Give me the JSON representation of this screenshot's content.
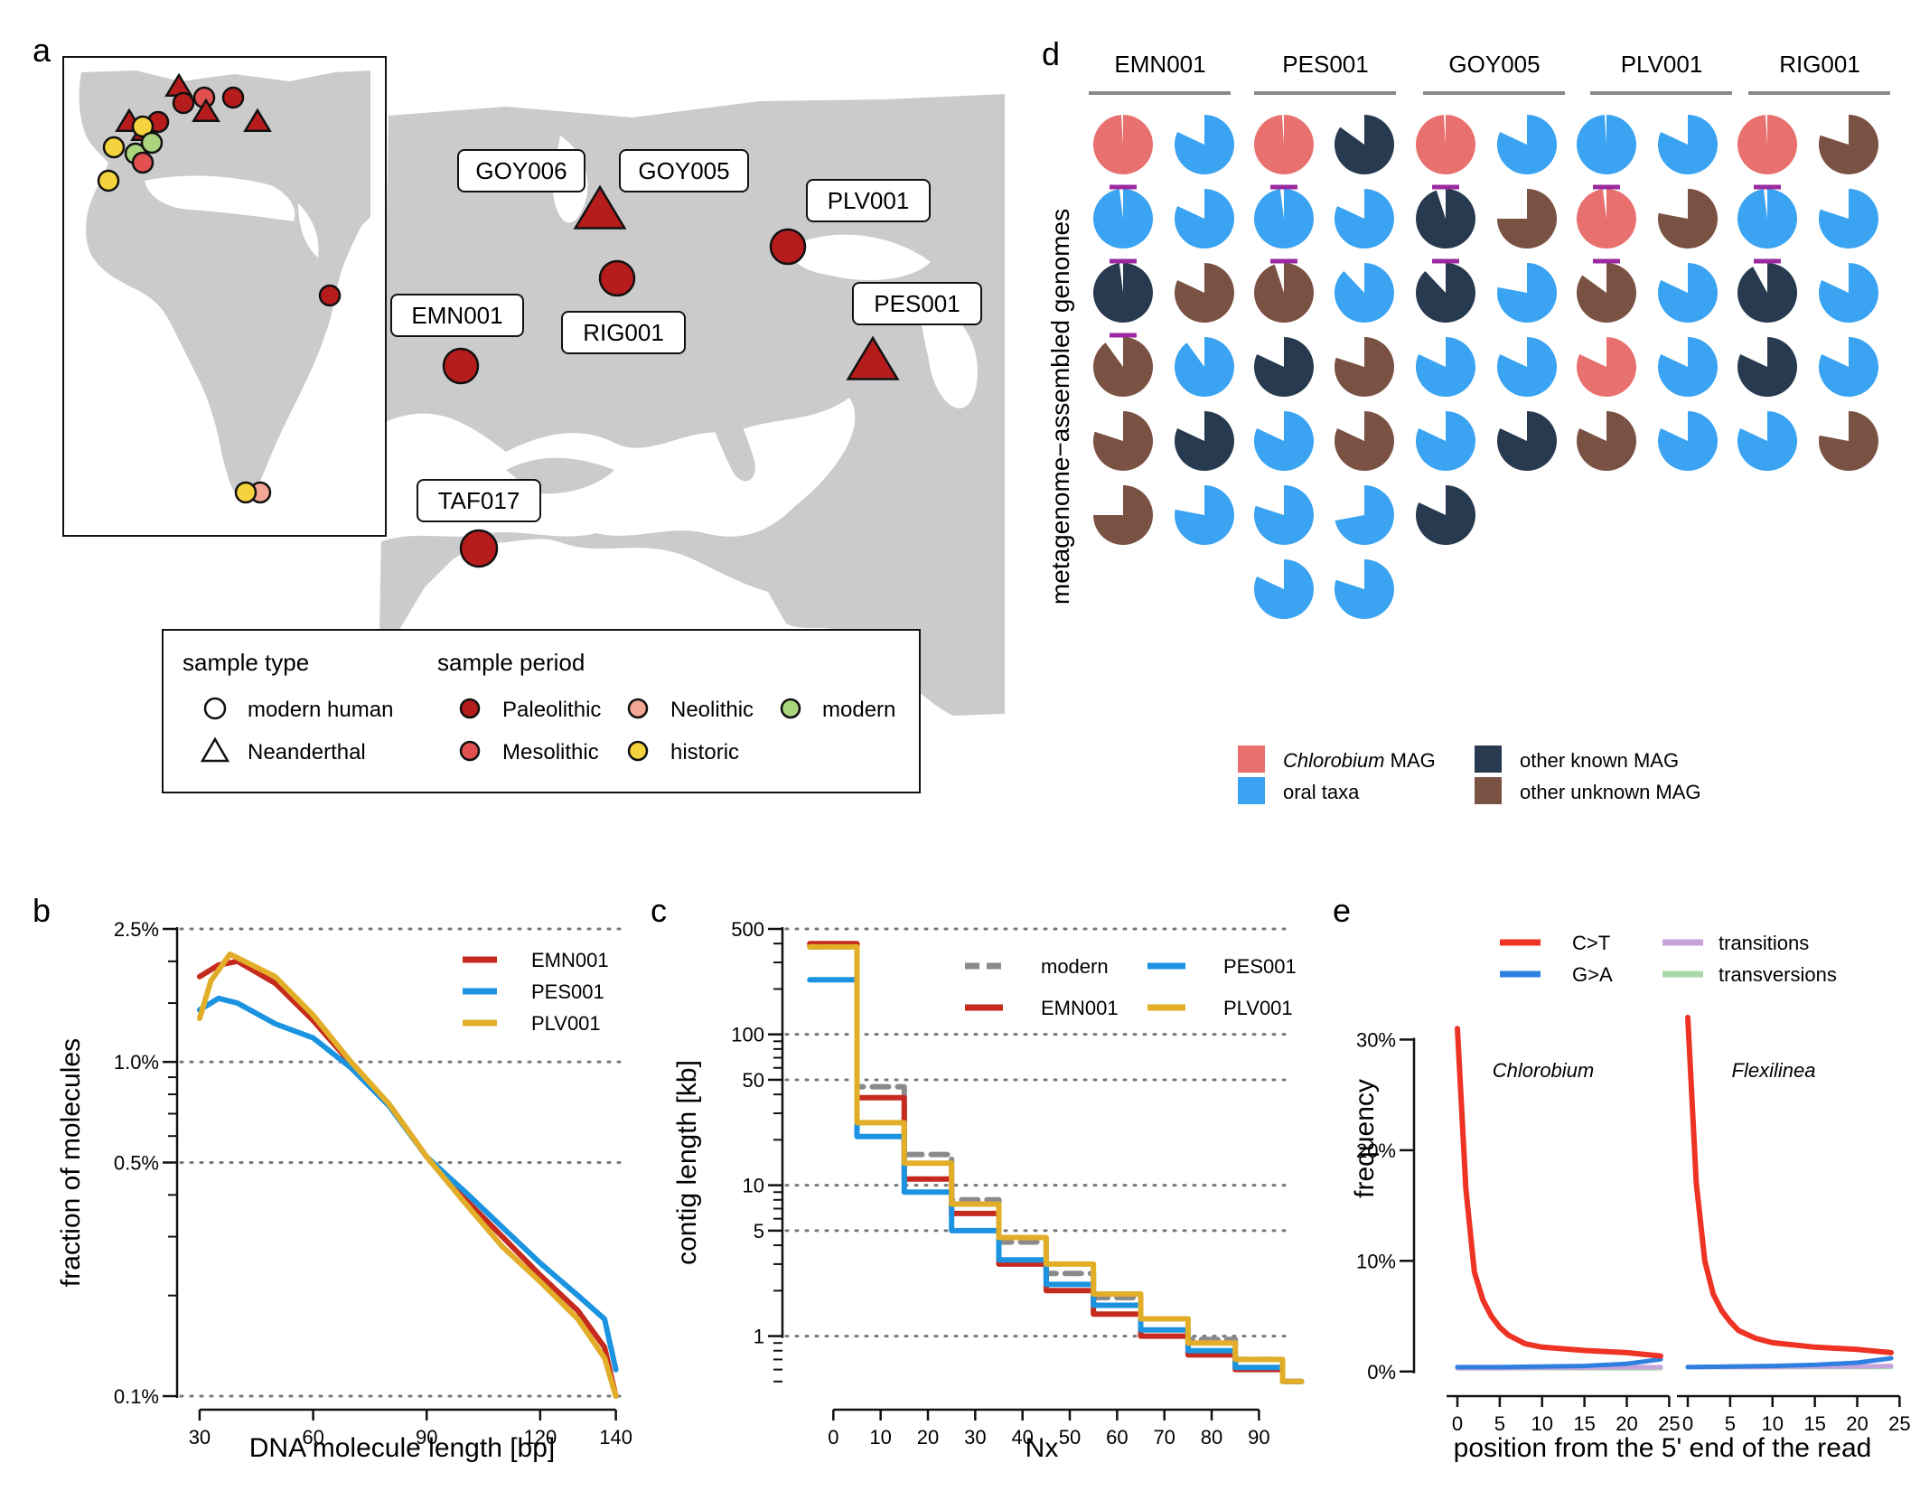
{
  "panel_letters": [
    "a",
    "b",
    "c",
    "d",
    "e"
  ],
  "colors": {
    "paleolithic": "#b61c1c",
    "mesolithic": "#e25050",
    "neolithic": "#f3a693",
    "historic": "#f5d33e",
    "modern_period": "#a9d57c",
    "land": "#cbcbcb",
    "chlorobium": "#e8706e",
    "oral": "#3aa3f2",
    "other_known": "#283a4f",
    "other_unknown": "#7a5244",
    "EMN001": "#c62a1e",
    "PES001": "#1b93e0",
    "PLV001": "#e2ae28",
    "modern_line": "#8a8a8a",
    "CT": "#ee3224",
    "GA": "#2f7fe0",
    "transitions": "#c7a3dc",
    "transversions": "#a8d8a8",
    "link": "#9b2aa0"
  },
  "map": {
    "labels": [
      "GOY006",
      "GOY005",
      "PLV001",
      "EMN001",
      "RIG001",
      "PES001",
      "TAF017"
    ],
    "legend": {
      "type_title": "sample type",
      "period_title": "sample period",
      "types": [
        "modern human",
        "Neanderthal"
      ],
      "periods": [
        "Paleolithic",
        "Mesolithic",
        "Neolithic",
        "modern",
        "historic"
      ]
    }
  },
  "chart_data": [
    {
      "panel": "b",
      "type": "line",
      "xlabel": "DNA molecule length [bp]",
      "ylabel": "fraction of molecules",
      "xlim": [
        25,
        142
      ],
      "ylim": [
        0.1,
        2.5
      ],
      "yscale": "log",
      "xticks": [
        "30",
        "60",
        "90",
        "120",
        "140"
      ],
      "xtick_values": [
        30,
        60,
        90,
        120,
        140
      ],
      "yticks": [
        "0.1%",
        "0.5%",
        "1.0%",
        "2.5%"
      ],
      "ytick_values": [
        0.1,
        0.5,
        1.0,
        2.5
      ],
      "grid": "horizontal dotted",
      "legend_position": "top-right",
      "series": [
        {
          "name": "EMN001",
          "x": [
            30,
            35,
            40,
            50,
            60,
            70,
            80,
            90,
            100,
            110,
            120,
            130,
            137,
            140
          ],
          "y": [
            1.8,
            1.95,
            2.0,
            1.72,
            1.33,
            0.99,
            0.75,
            0.52,
            0.39,
            0.3,
            0.23,
            0.18,
            0.14,
            0.1
          ]
        },
        {
          "name": "PES001",
          "x": [
            30,
            35,
            40,
            50,
            60,
            70,
            80,
            90,
            100,
            110,
            120,
            130,
            137,
            140
          ],
          "y": [
            1.43,
            1.55,
            1.5,
            1.3,
            1.18,
            0.96,
            0.74,
            0.52,
            0.41,
            0.32,
            0.25,
            0.2,
            0.17,
            0.12
          ]
        },
        {
          "name": "PLV001",
          "x": [
            30,
            33,
            38,
            40,
            50,
            60,
            70,
            80,
            90,
            100,
            110,
            120,
            130,
            137,
            140
          ],
          "y": [
            1.35,
            1.75,
            2.1,
            2.05,
            1.8,
            1.38,
            1.0,
            0.75,
            0.52,
            0.38,
            0.28,
            0.22,
            0.17,
            0.13,
            0.1
          ]
        }
      ]
    },
    {
      "panel": "c",
      "type": "line",
      "step": true,
      "xlabel": "Nx",
      "ylabel": "contig length [kb]",
      "xlim": [
        -10,
        97
      ],
      "ylim": [
        0.4,
        500
      ],
      "yscale": "log",
      "xticks": [
        "0",
        "10",
        "20",
        "30",
        "40",
        "50",
        "60",
        "70",
        "80",
        "90"
      ],
      "xtick_values": [
        0,
        10,
        20,
        30,
        40,
        50,
        60,
        70,
        80,
        90
      ],
      "yticks": [
        "1",
        "5",
        "10",
        "50",
        "100",
        "500"
      ],
      "ytick_values": [
        1,
        5,
        10,
        50,
        100,
        500
      ],
      "grid": "horizontal dotted",
      "legend_position": "top-right",
      "series": [
        {
          "name": "modern",
          "x": [
            -5,
            5,
            15,
            25,
            35,
            45,
            55,
            65,
            75,
            85,
            95
          ],
          "y": [
            380,
            45,
            16,
            8,
            4.2,
            2.6,
            1.8,
            1.3,
            0.95,
            0.7,
            0.5
          ]
        },
        {
          "name": "EMN001",
          "x": [
            -5,
            5,
            15,
            25,
            35,
            45,
            55,
            65,
            75,
            85,
            95
          ],
          "y": [
            400,
            38,
            11,
            6.5,
            3.0,
            2.0,
            1.4,
            1.0,
            0.75,
            0.6,
            0.5
          ]
        },
        {
          "name": "PES001",
          "x": [
            -5,
            5,
            15,
            25,
            35,
            45,
            55,
            65,
            75,
            85,
            95
          ],
          "y": [
            230,
            21,
            9.0,
            5.0,
            3.2,
            2.2,
            1.6,
            1.1,
            0.8,
            0.62,
            0.5
          ]
        },
        {
          "name": "PLV001",
          "x": [
            -5,
            5,
            15,
            25,
            35,
            45,
            55,
            65,
            75,
            85,
            95
          ],
          "y": [
            380,
            26,
            14,
            7.5,
            4.5,
            3.0,
            1.9,
            1.3,
            0.9,
            0.7,
            0.5
          ]
        }
      ]
    },
    {
      "panel": "e",
      "type": "line",
      "xlabel": "position from the 5' end of the read",
      "ylabel": "frequency",
      "xlim": [
        -1,
        25
      ],
      "ylim": [
        -1,
        40
      ],
      "xticks": [
        "0",
        "5",
        "10",
        "15",
        "20",
        "25"
      ],
      "xtick_values": [
        0,
        5,
        10,
        15,
        20,
        25
      ],
      "yticks": [
        "0%",
        "10%",
        "20%",
        "30%"
      ],
      "ytick_values": [
        0,
        10,
        20,
        30
      ],
      "legend_position": "top",
      "facets": [
        {
          "label": "Chlorobium",
          "series": [
            {
              "name": "C>T",
              "x": [
                0,
                1,
                2,
                3,
                4,
                5,
                6,
                8,
                10,
                15,
                20,
                24
              ],
              "y": [
                31,
                16.5,
                9,
                6.5,
                5,
                4,
                3.3,
                2.5,
                2.2,
                1.9,
                1.7,
                1.4
              ]
            },
            {
              "name": "G>A",
              "x": [
                0,
                5,
                10,
                15,
                20,
                24
              ],
              "y": [
                0.4,
                0.4,
                0.45,
                0.5,
                0.7,
                1.1
              ]
            },
            {
              "name": "transitions",
              "x": [
                0,
                5,
                10,
                15,
                20,
                24
              ],
              "y": [
                0.3,
                0.3,
                0.35,
                0.35,
                0.4,
                0.4
              ]
            },
            {
              "name": "transversions",
              "x": [
                0,
                5,
                10,
                15,
                20,
                24
              ],
              "y": [
                0.3,
                0.3,
                0.3,
                0.3,
                0.3,
                0.3
              ]
            }
          ]
        },
        {
          "label": "Flexilinea",
          "series": [
            {
              "name": "C>T",
              "x": [
                0,
                1,
                2,
                3,
                4,
                5,
                6,
                8,
                10,
                15,
                20,
                24
              ],
              "y": [
                32,
                17,
                10,
                7,
                5.5,
                4.5,
                3.7,
                3,
                2.6,
                2.2,
                2,
                1.7
              ]
            },
            {
              "name": "G>A",
              "x": [
                0,
                5,
                10,
                15,
                20,
                24
              ],
              "y": [
                0.4,
                0.45,
                0.5,
                0.6,
                0.8,
                1.2
              ]
            },
            {
              "name": "transitions",
              "x": [
                0,
                5,
                10,
                15,
                20,
                24
              ],
              "y": [
                0.4,
                0.4,
                0.4,
                0.45,
                0.45,
                0.5
              ]
            },
            {
              "name": "transversions",
              "x": [
                0,
                5,
                10,
                15,
                20,
                24
              ],
              "y": [
                0.4,
                0.4,
                0.4,
                0.4,
                0.4,
                0.4
              ]
            }
          ]
        }
      ]
    },
    {
      "panel": "d",
      "type": "pie",
      "ylabel": "metagenome−assembled genomes",
      "columns": [
        "EMN001",
        "PES001",
        "GOY005",
        "PLV001",
        "RIG001"
      ],
      "legend": [
        {
          "key": "chlorobium",
          "italic": "Chlorobium",
          "text": " MAG"
        },
        {
          "key": "oral",
          "text": "oral taxa"
        },
        {
          "key": "other_known",
          "text": "other known MAG"
        },
        {
          "key": "other_unknown",
          "text": "other unknown MAG"
        }
      ],
      "mags": [
        [
          [
            "chlorobium",
            0.99
          ],
          [
            "oral",
            0.82
          ],
          [
            "oral",
            0.98
          ],
          [
            "oral",
            0.82
          ],
          [
            "other_known",
            0.98
          ],
          [
            "other_unknown",
            0.82
          ],
          [
            "other_unknown",
            0.9
          ],
          [
            "oral",
            0.9
          ],
          [
            "other_unknown",
            0.8
          ],
          [
            "other_known",
            0.82
          ],
          [
            "other_unknown",
            0.75
          ],
          [
            "oral",
            0.78
          ]
        ],
        [
          [
            "chlorobium",
            0.99
          ],
          [
            "other_known",
            0.85
          ],
          [
            "oral",
            0.98
          ],
          [
            "oral",
            0.82
          ],
          [
            "other_unknown",
            0.95
          ],
          [
            "oral",
            0.88
          ],
          [
            "other_known",
            0.82
          ],
          [
            "other_unknown",
            0.8
          ],
          [
            "oral",
            0.82
          ],
          [
            "other_unknown",
            0.82
          ],
          [
            "oral",
            0.8
          ],
          [
            "oral",
            0.72
          ],
          [
            "oral",
            0.82
          ],
          [
            "oral",
            0.8
          ]
        ],
        [
          [
            "chlorobium",
            0.99
          ],
          [
            "oral",
            0.82
          ],
          [
            "other_known",
            0.95
          ],
          [
            "other_unknown",
            0.75
          ],
          [
            "other_known",
            0.88
          ],
          [
            "oral",
            0.78
          ],
          [
            "oral",
            0.82
          ],
          [
            "oral",
            0.82
          ],
          [
            "oral",
            0.82
          ],
          [
            "other_known",
            0.82
          ],
          [
            "other_known",
            0.82
          ]
        ],
        [
          [
            "oral",
            0.99
          ],
          [
            "oral",
            0.82
          ],
          [
            "chlorobium",
            0.98
          ],
          [
            "other_unknown",
            0.78
          ],
          [
            "other_unknown",
            0.85
          ],
          [
            "oral",
            0.82
          ],
          [
            "chlorobium",
            0.82
          ],
          [
            "oral",
            0.82
          ],
          [
            "other_unknown",
            0.82
          ],
          [
            "oral",
            0.82
          ]
        ],
        [
          [
            "chlorobium",
            0.99
          ],
          [
            "other_unknown",
            0.8
          ],
          [
            "oral",
            0.98
          ],
          [
            "oral",
            0.8
          ],
          [
            "other_known",
            0.92
          ],
          [
            "oral",
            0.82
          ],
          [
            "other_known",
            0.82
          ],
          [
            "oral",
            0.82
          ],
          [
            "oral",
            0.82
          ],
          [
            "other_unknown",
            0.78
          ]
        ]
      ]
    }
  ]
}
